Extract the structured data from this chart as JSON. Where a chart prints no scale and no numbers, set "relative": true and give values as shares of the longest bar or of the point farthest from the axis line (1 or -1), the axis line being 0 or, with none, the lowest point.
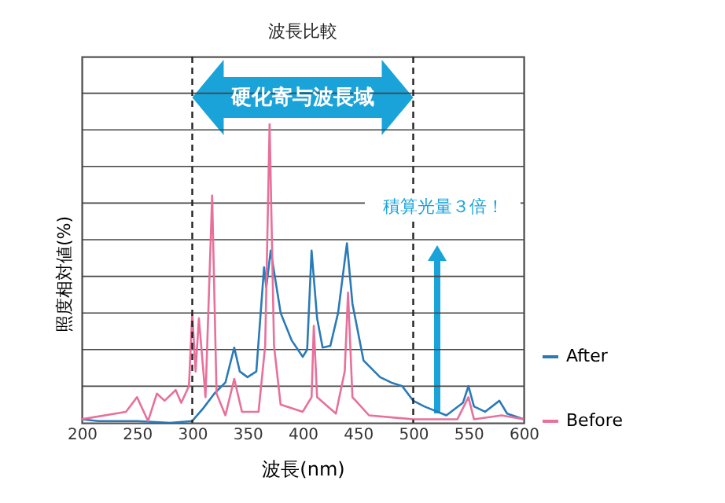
{
  "chart_data": {
    "type": "line",
    "title": "波長比較",
    "xlabel": "波長(nm)",
    "ylabel": "照度相対値(%)",
    "relative": true,
    "xlim": [
      200,
      600
    ],
    "xticks": [
      200,
      250,
      300,
      350,
      400,
      450,
      500,
      550,
      600
    ],
    "tick_labels": "x",
    "grid": "y",
    "legend": "right",
    "line_style": "solid",
    "annotations": [
      "硬化寄与波長域",
      "積算光量３倍！"
    ],
    "ref_lines": [
      {
        "axis": "x",
        "value": 300,
        "color": "#222222",
        "line_style": "dashed"
      },
      {
        "axis": "x",
        "value": 500,
        "color": "#222222",
        "line_style": "dashed"
      }
    ],
    "series": [
      {
        "name": "After",
        "color": "#2a7ab8",
        "x": [
          200,
          215,
          250,
          280,
          300,
          310,
          320,
          330,
          338,
          343,
          350,
          358,
          365,
          367,
          371,
          380,
          390,
          400,
          404,
          408,
          413,
          418,
          425,
          432,
          440,
          445,
          455,
          470,
          480,
          490,
          500,
          510,
          530,
          545,
          550,
          555,
          565,
          578,
          585,
          600
        ],
        "values": [
          0.012,
          0.006,
          0.006,
          0,
          0.006,
          0.049,
          0.098,
          0.135,
          0.252,
          0.172,
          0.153,
          0.172,
          0.521,
          0.454,
          0.577,
          0.368,
          0.276,
          0.221,
          0.245,
          0.577,
          0.35,
          0.252,
          0.258,
          0.368,
          0.601,
          0.399,
          0.209,
          0.153,
          0.135,
          0.123,
          0.074,
          0.055,
          0.025,
          0.067,
          0.123,
          0.055,
          0.037,
          0.074,
          0.031,
          0.012
        ]
      },
      {
        "name": "Before",
        "color": "#e8709a",
        "x": [
          200,
          240,
          250,
          260,
          268,
          275,
          285,
          290,
          297,
          300,
          303,
          306,
          312,
          318,
          322,
          330,
          338,
          345,
          360,
          366,
          370,
          374,
          380,
          400,
          408,
          410,
          413,
          430,
          438,
          441,
          445,
          460,
          500,
          540,
          550,
          555,
          580,
          600
        ],
        "values": [
          0.012,
          0.037,
          0.086,
          0.006,
          0.098,
          0.074,
          0.11,
          0.067,
          0.123,
          0.368,
          0.172,
          0.35,
          0.086,
          0.761,
          0.098,
          0.025,
          0.147,
          0.037,
          0.037,
          0.258,
          1,
          0.258,
          0.061,
          0.037,
          0.086,
          0.325,
          0.086,
          0.031,
          0.172,
          0.436,
          0.086,
          0.025,
          0.012,
          0.012,
          0.086,
          0.012,
          0.025,
          0.012
        ]
      }
    ]
  }
}
